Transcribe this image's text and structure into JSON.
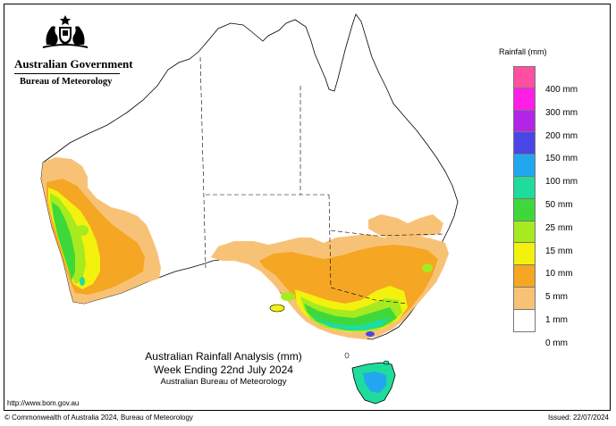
{
  "header": {
    "government": "Australian Government",
    "bureau": "Bureau of Meteorology"
  },
  "legend": {
    "title": "Rainfall (mm)",
    "items": [
      {
        "label": "400 mm",
        "color": "#ff4fa0"
      },
      {
        "label": "300 mm",
        "color": "#ff1ee6"
      },
      {
        "label": "200 mm",
        "color": "#b424e8"
      },
      {
        "label": "150 mm",
        "color": "#4a46e6"
      },
      {
        "label": "100 mm",
        "color": "#23a6f0"
      },
      {
        "label": "50 mm",
        "color": "#1fdc9c"
      },
      {
        "label": "25 mm",
        "color": "#3fd83a"
      },
      {
        "label": "15 mm",
        "color": "#a6ea20"
      },
      {
        "label": "10 mm",
        "color": "#f2f20e"
      },
      {
        "label": "5 mm",
        "color": "#f5a623"
      },
      {
        "label": "1 mm",
        "color": "#f8c276"
      },
      {
        "label": "0 mm",
        "color": "#ffffff"
      }
    ]
  },
  "map_title": {
    "line1": "Australian Rainfall Analysis (mm)",
    "line2": "Week Ending 22nd July 2024",
    "line3": "Australian Bureau of Meteorology"
  },
  "footer": {
    "url": "http://www.bom.gov.au",
    "copyright": "© Commonwealth of Australia 2024, Bureau of Meteorology",
    "issued": "Issued: 22/07/2024"
  }
}
